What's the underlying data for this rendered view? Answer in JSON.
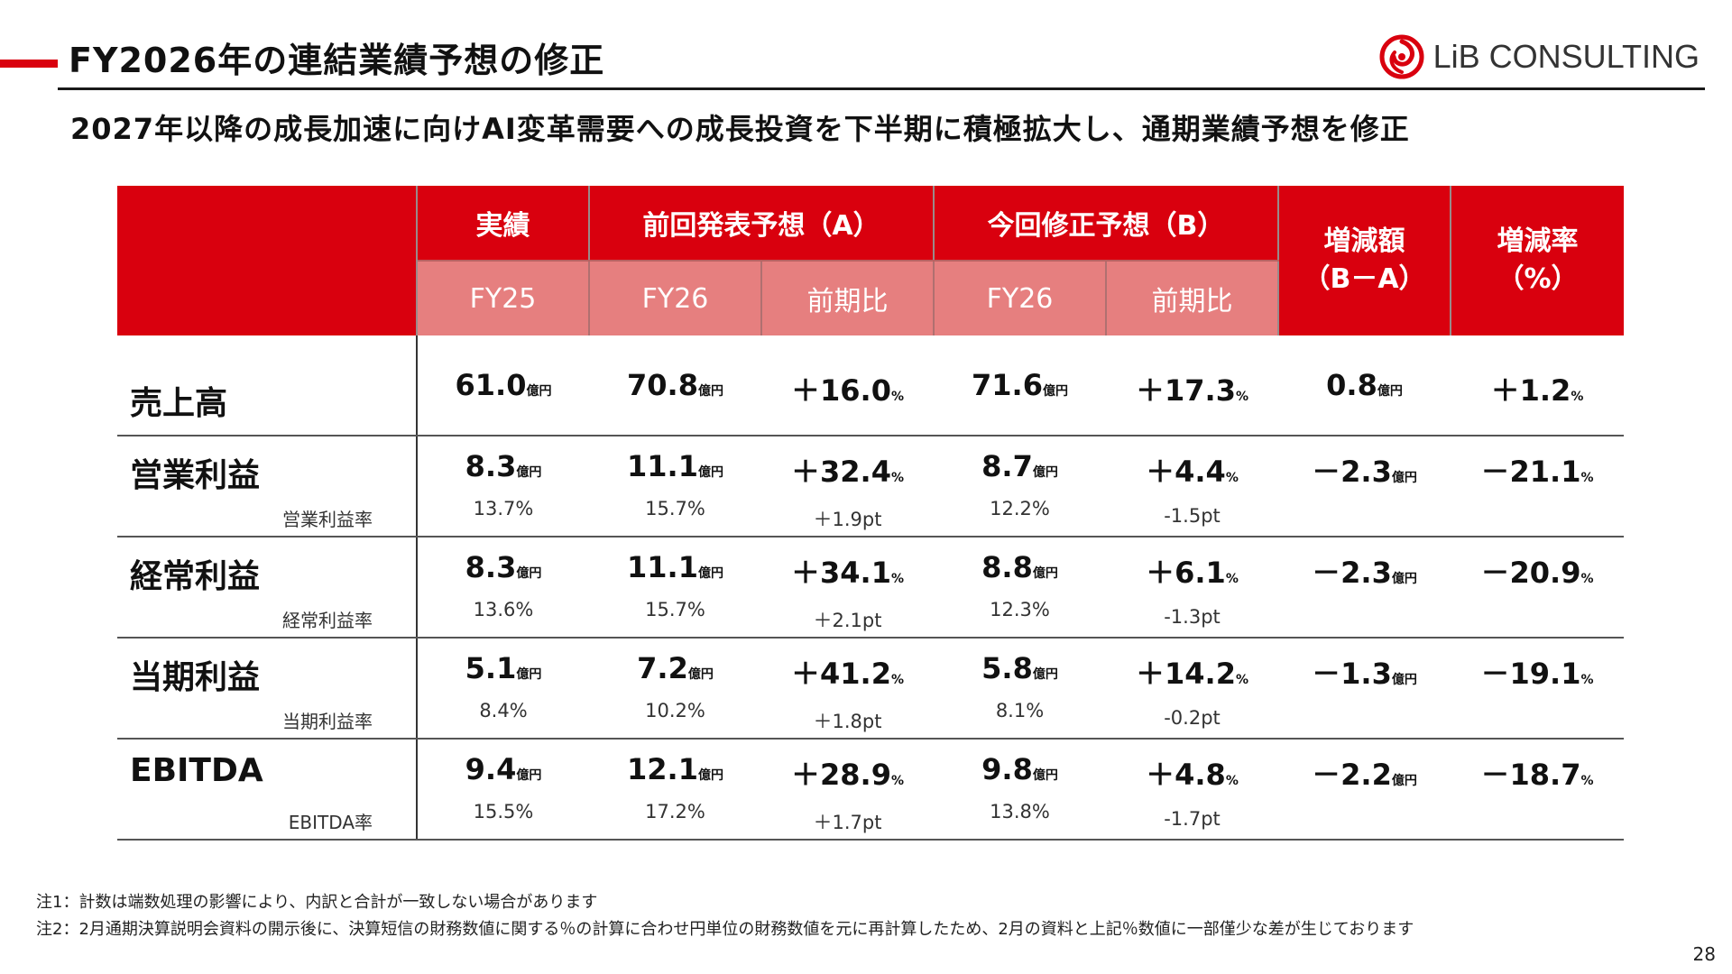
{
  "header": {
    "title": "FY2026年の連結業績予想の修正",
    "logo_text": "LiB CONSULTING",
    "subtitle": "2027年以降の成長加速に向けAI変革需要への成長投資を下半期に積極拡大し、通期業績予想を修正"
  },
  "table": {
    "group_headers": {
      "actual": "実績",
      "previous": "前回発表予想（A）",
      "revised": "今回修正予想（B）",
      "change_amount": "増減額\n（B－A）",
      "change_rate": "増減率\n（%）"
    },
    "sub_headers": [
      "FY25",
      "FY26",
      "前期比",
      "FY26",
      "前期比"
    ],
    "rows": [
      {
        "label": "売上高",
        "values": [
          {
            "v": "61.0",
            "u": "億円"
          },
          {
            "v": "70.8",
            "u": "億円"
          },
          {
            "v": "＋16.0",
            "u": "%"
          },
          {
            "v": "71.6",
            "u": "億円"
          },
          {
            "v": "＋17.3",
            "u": "%"
          },
          {
            "v": "0.8",
            "u": "億円"
          },
          {
            "v": "＋1.2",
            "u": "%"
          }
        ]
      },
      {
        "label": "営業利益",
        "sub_label": "営業利益率",
        "values": [
          {
            "v": "8.3",
            "u": "億円"
          },
          {
            "v": "11.1",
            "u": "億円"
          },
          {
            "v": "＋32.4",
            "u": "%"
          },
          {
            "v": "8.7",
            "u": "億円"
          },
          {
            "v": "＋4.4",
            "u": "%"
          },
          {
            "v": "－2.3",
            "u": "億円"
          },
          {
            "v": "－21.1",
            "u": "%"
          }
        ],
        "sub_values": [
          "13.7%",
          "15.7%",
          "＋1.9pt",
          "12.2%",
          "-1.5pt"
        ]
      },
      {
        "label": "経常利益",
        "sub_label": "経常利益率",
        "values": [
          {
            "v": "8.3",
            "u": "億円"
          },
          {
            "v": "11.1",
            "u": "億円"
          },
          {
            "v": "＋34.1",
            "u": "%"
          },
          {
            "v": "8.8",
            "u": "億円"
          },
          {
            "v": "＋6.1",
            "u": "%"
          },
          {
            "v": "－2.3",
            "u": "億円"
          },
          {
            "v": "－20.9",
            "u": "%"
          }
        ],
        "sub_values": [
          "13.6%",
          "15.7%",
          "＋2.1pt",
          "12.3%",
          "-1.3pt"
        ]
      },
      {
        "label": "当期利益",
        "sub_label": "当期利益率",
        "values": [
          {
            "v": "5.1",
            "u": "億円"
          },
          {
            "v": "7.2",
            "u": "億円"
          },
          {
            "v": "＋41.2",
            "u": "%"
          },
          {
            "v": "5.8",
            "u": "億円"
          },
          {
            "v": "＋14.2",
            "u": "%"
          },
          {
            "v": "－1.3",
            "u": "億円"
          },
          {
            "v": "－19.1",
            "u": "%"
          }
        ],
        "sub_values": [
          "8.4%",
          "10.2%",
          "＋1.8pt",
          "8.1%",
          "-0.2pt"
        ]
      },
      {
        "label": "EBITDA",
        "sub_label": "EBITDA率",
        "values": [
          {
            "v": "9.4",
            "u": "億円"
          },
          {
            "v": "12.1",
            "u": "億円"
          },
          {
            "v": "＋28.9",
            "u": "%"
          },
          {
            "v": "9.8",
            "u": "億円"
          },
          {
            "v": "＋4.8",
            "u": "%"
          },
          {
            "v": "－2.2",
            "u": "億円"
          },
          {
            "v": "－18.7",
            "u": "%"
          }
        ],
        "sub_values": [
          "15.5%",
          "17.2%",
          "＋1.7pt",
          "13.8%",
          "-1.7pt"
        ]
      }
    ]
  },
  "notes": [
    "注1：計数は端数処理の影響により、内訳と合計が一致しない場合があります",
    "注2：2月通期決算説明会資料の開示後に、決算短信の財務数値に関する％の計算に合わせ円単位の財務数値を元に再計算したため、2月の資料と上記％数値に一部僅少な差が生じております"
  ],
  "page_number": "28",
  "colors": {
    "accent_red": "#d9000e",
    "header_pink": "#e67f7f"
  }
}
